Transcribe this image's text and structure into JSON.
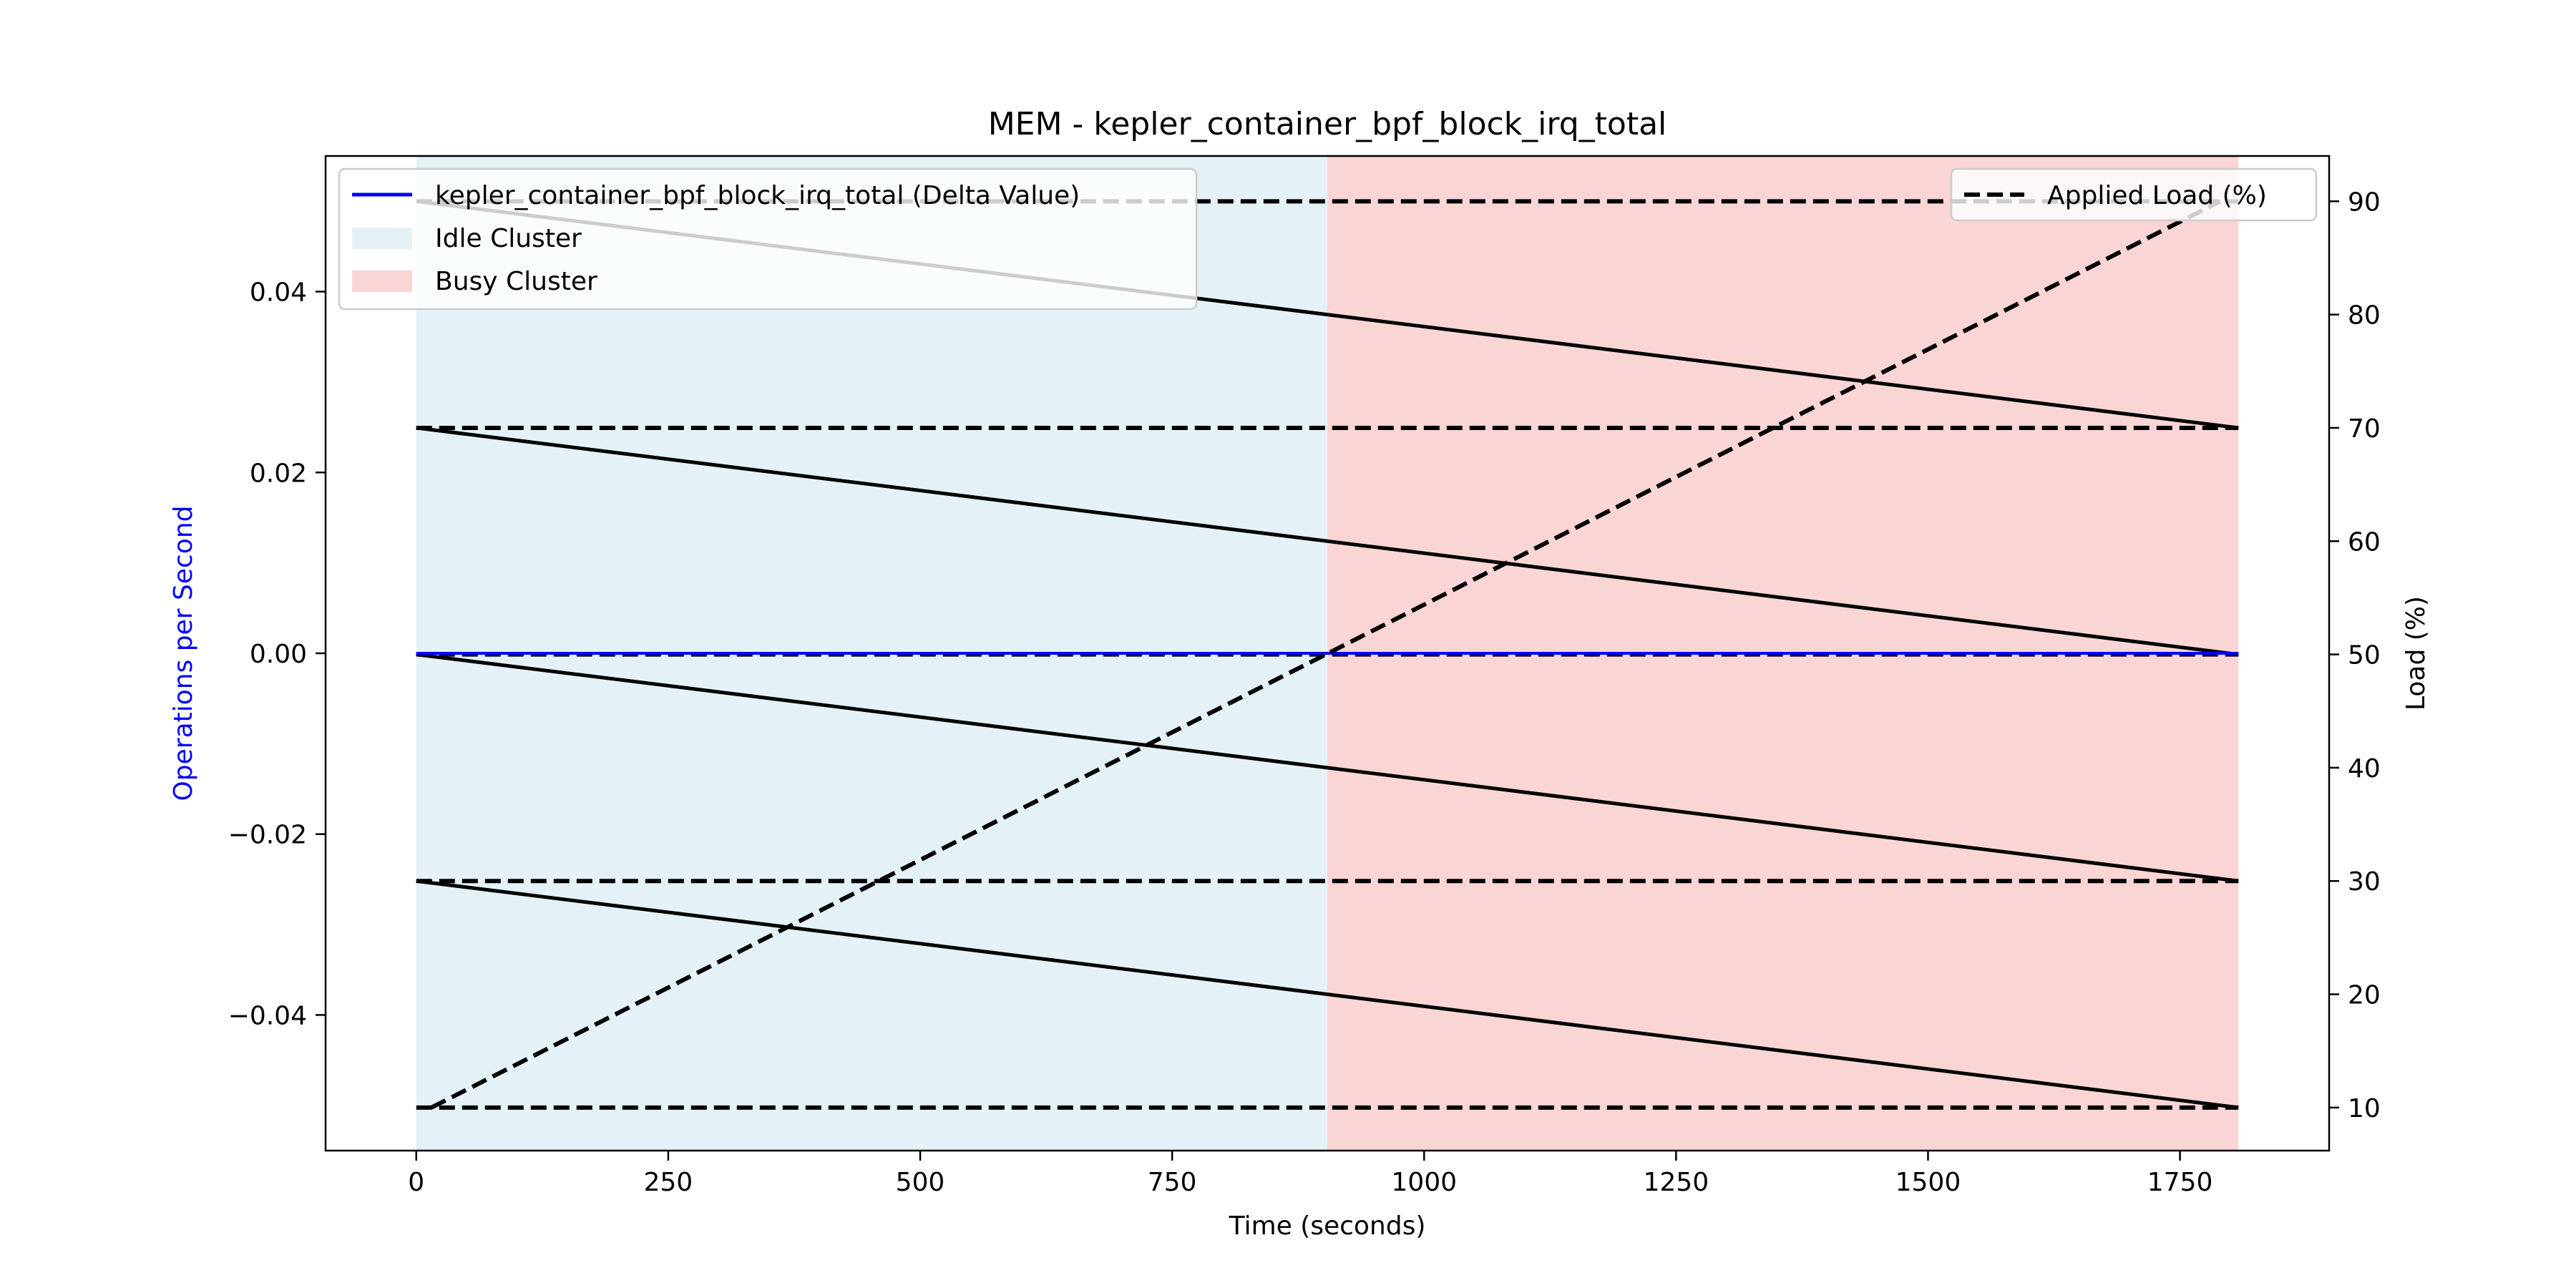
{
  "chart_data": {
    "type": "line",
    "title": "MEM - kepler_container_bpf_block_irq_total",
    "xlabel": "Time (seconds)",
    "ylabel_left": "Operations per Second",
    "ylabel_right": "Load (%)",
    "xlim": [
      -90,
      1898
    ],
    "ylim_left": [
      -0.055,
      0.055
    ],
    "ylim_right": [
      6.2,
      94
    ],
    "x_ticks": [
      0,
      250,
      500,
      750,
      1000,
      1250,
      1500,
      1750
    ],
    "x_tick_labels": [
      "0",
      "250",
      "500",
      "750",
      "1000",
      "1250",
      "1500",
      "1750"
    ],
    "y_left_ticks": [
      -0.04,
      -0.02,
      0.0,
      0.02,
      0.04
    ],
    "y_left_tick_labels": [
      "−0.04",
      "−0.02",
      "0.00",
      "0.02",
      "0.04"
    ],
    "y_right_ticks": [
      10,
      20,
      30,
      40,
      50,
      60,
      70,
      80,
      90
    ],
    "y_right_tick_labels": [
      "10",
      "20",
      "30",
      "40",
      "50",
      "60",
      "70",
      "80",
      "90"
    ],
    "regions": [
      {
        "name": "Idle Cluster",
        "x_start": 0,
        "x_end": 904,
        "color": "#add8e6",
        "alpha": 0.33
      },
      {
        "name": "Busy Cluster",
        "x_start": 904,
        "x_end": 1808,
        "color": "#f08080",
        "alpha": 0.33
      }
    ],
    "series": [
      {
        "name": "kepler_container_bpf_block_irq_total (Delta Value)",
        "axis": "left",
        "color": "#0000ff",
        "style": "solid",
        "x": [
          0,
          1808
        ],
        "y": [
          0.0,
          0.0
        ]
      },
      {
        "name": "Applied Load (%)",
        "axis": "right",
        "color": "#000000",
        "style": "dashed",
        "x": [
          15,
          1790
        ],
        "y": [
          10,
          90
        ]
      }
    ],
    "legend_left": {
      "position": "upper-left",
      "entries": [
        {
          "label": "kepler_container_bpf_block_irq_total (Delta Value)",
          "kind": "line",
          "color": "#0000ff"
        },
        {
          "label": "Idle Cluster",
          "kind": "patch",
          "color": "#add8e6"
        },
        {
          "label": "Busy Cluster",
          "kind": "patch",
          "color": "#f08080"
        }
      ]
    },
    "legend_right": {
      "position": "upper-right",
      "entries": [
        {
          "label": "Applied Load (%)",
          "kind": "dashed-line",
          "color": "#000000"
        }
      ]
    },
    "overlay": {
      "color": "#000000",
      "x_start": 0,
      "x_end": 1808,
      "dashed_levels_load": [
        90,
        70,
        50,
        30,
        10
      ],
      "solid_diagonals_load": [
        [
          90,
          70
        ],
        [
          70,
          50
        ],
        [
          50,
          30
        ],
        [
          30,
          10
        ]
      ]
    }
  }
}
